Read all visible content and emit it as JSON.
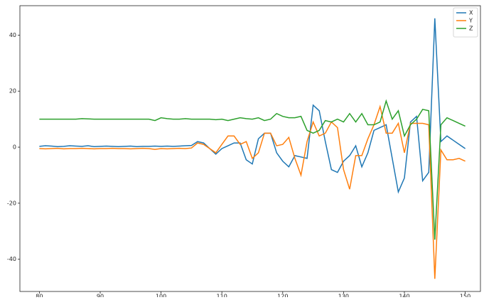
{
  "chart_data": {
    "type": "line",
    "x": [
      80,
      81,
      82,
      83,
      84,
      85,
      86,
      87,
      88,
      89,
      90,
      91,
      92,
      93,
      94,
      95,
      96,
      97,
      98,
      99,
      100,
      101,
      102,
      103,
      104,
      105,
      106,
      107,
      108,
      109,
      110,
      111,
      112,
      113,
      114,
      115,
      116,
      117,
      118,
      119,
      120,
      121,
      122,
      123,
      124,
      125,
      126,
      127,
      128,
      129,
      130,
      131,
      132,
      133,
      134,
      135,
      136,
      137,
      138,
      139,
      140,
      141,
      142,
      143,
      144,
      145,
      146,
      147,
      148,
      149,
      150
    ],
    "series": [
      {
        "name": "X",
        "color": "#1f77b4",
        "values": [
          0.3,
          0.5,
          0.4,
          0.2,
          0.3,
          0.5,
          0.4,
          0.3,
          0.5,
          0.2,
          0.3,
          0.4,
          0.3,
          0.2,
          0.3,
          0.4,
          0.2,
          0.3,
          0.3,
          0.4,
          0.3,
          0.4,
          0.3,
          0.4,
          0.5,
          0.6,
          2,
          1.5,
          -0.5,
          -2.5,
          -0.5,
          0.5,
          1.5,
          1.5,
          -4.5,
          -6,
          3,
          5,
          5,
          -2,
          -5,
          -7,
          -3,
          -3.5,
          -4,
          15,
          13,
          2,
          -8,
          -9,
          -5,
          -3,
          0.5,
          -7,
          -2,
          6,
          7,
          8,
          -4,
          -16,
          -11,
          9,
          11,
          -12,
          -9,
          46,
          2,
          4,
          2.5,
          1,
          -0.5
        ]
      },
      {
        "name": "Y",
        "color": "#ff7f0e",
        "values": [
          -0.5,
          -0.6,
          -0.5,
          -0.4,
          -0.6,
          -0.5,
          -0.5,
          -0.4,
          -0.5,
          -0.6,
          -0.5,
          -0.5,
          -0.4,
          -0.5,
          -0.5,
          -0.6,
          -0.5,
          -0.4,
          -0.5,
          -0.8,
          -0.5,
          -0.6,
          -0.5,
          -0.4,
          -0.5,
          -0.3,
          1.5,
          1,
          -0.5,
          -2,
          1,
          4,
          4,
          1,
          2,
          -4,
          -2,
          5,
          5,
          0.5,
          1,
          3.5,
          -4,
          -10,
          2,
          9,
          4,
          5,
          9,
          7,
          -8,
          -15,
          -3,
          -3,
          3,
          8,
          14.5,
          5,
          5,
          8.5,
          -2,
          8.5,
          8.5,
          8.5,
          8,
          -47,
          -1,
          -4.5,
          -4.5,
          -4,
          -5
        ]
      },
      {
        "name": "Z",
        "color": "#2ca02c",
        "values": [
          10,
          10,
          10,
          10,
          10,
          10,
          10,
          10.2,
          10.1,
          10,
          10,
          10,
          10,
          10,
          10,
          10,
          10,
          10,
          10,
          9.5,
          10.5,
          10.2,
          10,
          10,
          10.2,
          10,
          10,
          10,
          10,
          9.8,
          10,
          9.5,
          10,
          10.5,
          10.2,
          10,
          10.5,
          9.5,
          10,
          12,
          11,
          10.5,
          10.5,
          11,
          6,
          5,
          6,
          9.5,
          9,
          10,
          9,
          12,
          9,
          12,
          8,
          8,
          9,
          16.5,
          10,
          13,
          4,
          8,
          10,
          13.5,
          13,
          -33,
          8,
          10.5,
          9.5,
          8.5,
          7.5
        ]
      }
    ],
    "xlim": [
      76.8,
      152.5
    ],
    "xticks": [
      80,
      90,
      100,
      110,
      120,
      130,
      140,
      150
    ],
    "ylim": [
      -51.5,
      50.5
    ],
    "yticks": [
      -40,
      -20,
      0,
      20,
      40
    ],
    "legend": "upper right"
  }
}
